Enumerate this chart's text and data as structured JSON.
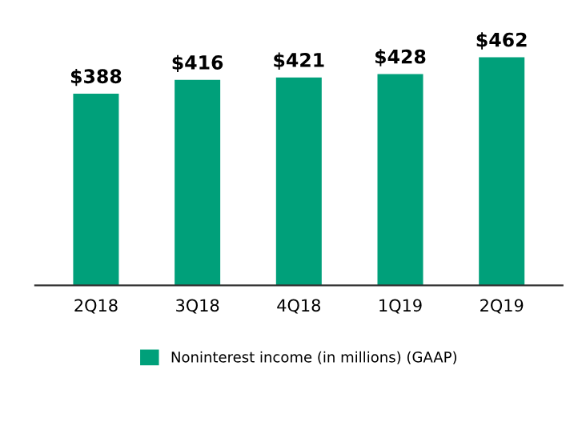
{
  "chart_data": {
    "type": "bar",
    "categories": [
      "2Q18",
      "3Q18",
      "4Q18",
      "1Q19",
      "2Q19"
    ],
    "series": [
      {
        "name": "Noninterest income (in millions) (GAAP)",
        "color": "#00a07a",
        "values": [
          388,
          416,
          421,
          428,
          462
        ],
        "value_labels": [
          "$388",
          "$416",
          "$421",
          "$428",
          "$462"
        ]
      }
    ],
    "tick_labels": "x",
    "legend": "bottom",
    "grid": false
  }
}
